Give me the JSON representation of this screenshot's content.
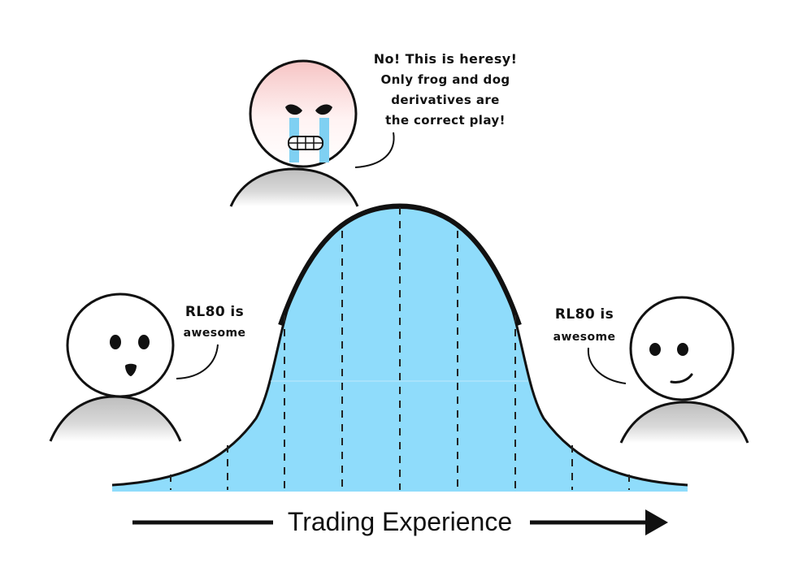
{
  "meme": {
    "axis_label": "Trading Experience",
    "left_character": {
      "line1": "RL80 is",
      "line2": "awesome"
    },
    "middle_character": {
      "line1": "No! This is heresy!",
      "line2": "Only frog and dog",
      "line3": "derivatives are",
      "line4": "the correct play!"
    },
    "right_character": {
      "line1": "RL80 is",
      "line2": "awesome"
    }
  },
  "colors": {
    "curve_fill": "#8fdcfb",
    "ink": "#111111",
    "body_gray": "#c8c8c8",
    "angry_face_tint": "#f7c8c8",
    "tears": "#7fd0f2"
  }
}
